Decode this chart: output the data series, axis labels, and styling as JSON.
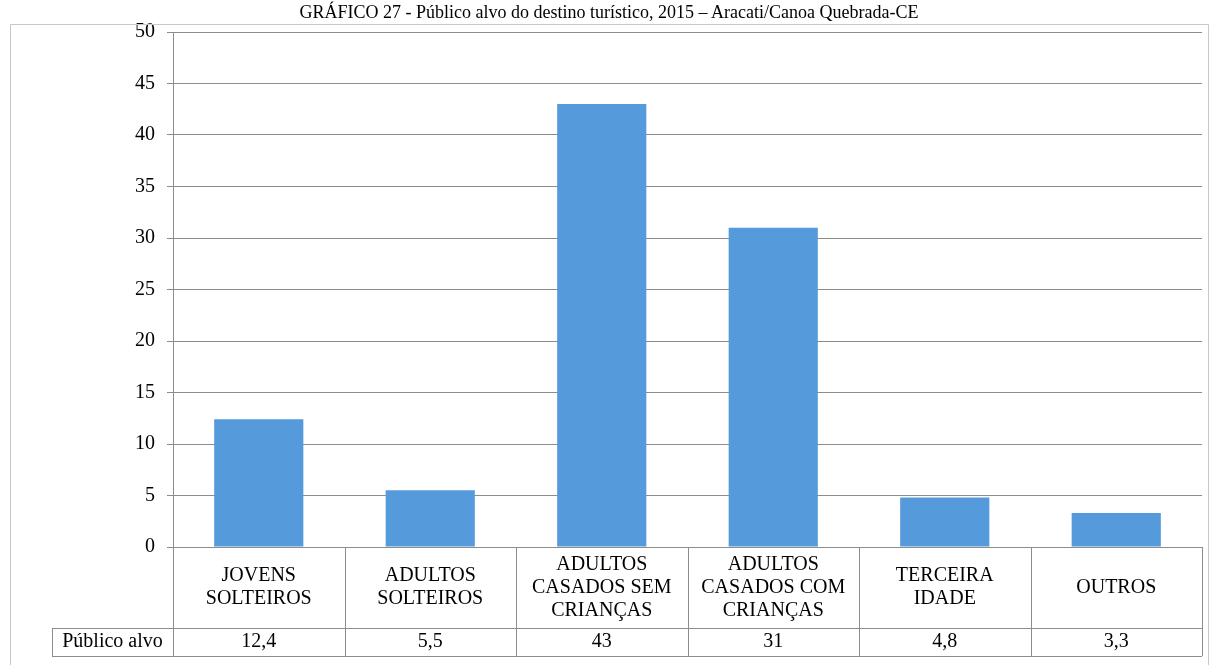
{
  "chart_data": {
    "type": "bar",
    "title": "GRÁFICO 27 - Público alvo do destino turístico, 2015 – Aracati/Canoa Quebrada-CE",
    "categories": [
      "JOVENS SOLTEIROS",
      "ADULTOS SOLTEIROS",
      "ADULTOS CASADOS SEM CRIANÇAS",
      "ADULTOS CASADOS COM CRIANÇAS",
      "TERCEIRA IDADE",
      "OUTROS"
    ],
    "series": [
      {
        "name": "Público alvo",
        "color": "#559bdc",
        "values": [
          12.4,
          5.5,
          43,
          31,
          4.8,
          3.3
        ],
        "value_labels": [
          "12,4",
          "5,5",
          "43",
          "31",
          "4,8",
          "3,3"
        ]
      }
    ],
    "ylim": [
      0,
      50
    ],
    "yticks": [
      0,
      5,
      10,
      15,
      20,
      25,
      30,
      35,
      40,
      45,
      50
    ],
    "grid": "y",
    "legend": false
  }
}
